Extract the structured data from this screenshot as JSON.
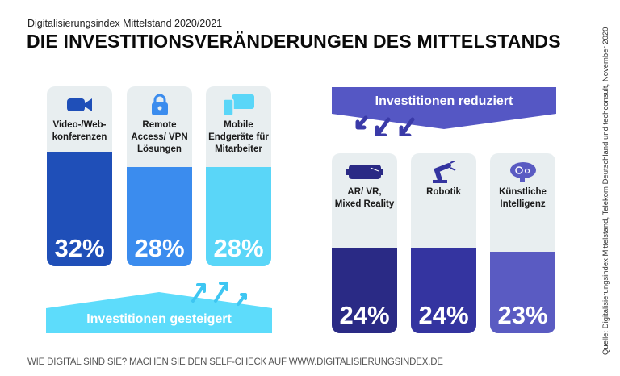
{
  "header": {
    "subtitle": "Digitalisierungsindex Mittelstand 2020/2021",
    "title": "DIE INVESTITIONSVERÄNDERUNGEN DES MITTELSTANDS"
  },
  "footer": {
    "cta": "WIE DIGITAL SIND SIE? MACHEN SIE DEN SELF-CHECK AUF WWW.DIGITALISIERUNGSINDEX.DE"
  },
  "source": "Quelle: Digitalisierungsindex Mittelstand, Telekom Deutschland und techconsult, November 2020",
  "chart_data": [
    {
      "type": "bar",
      "title": "Investitionen gesteigert",
      "categories": [
        "Video-/Web-konferenzen",
        "Remote Access/ VPN Lösungen",
        "Mobile Endgeräte für Mitarbeiter"
      ],
      "labels": [
        "32%",
        "28%",
        "28%"
      ],
      "values": [
        32,
        28,
        28
      ],
      "unit": "%",
      "colors": [
        "#1f4fb8",
        "#3b8cee",
        "#5ad6f8"
      ],
      "icons": [
        "video-camera-icon",
        "lock-icon",
        "devices-icon"
      ]
    },
    {
      "type": "bar",
      "title": "Investitionen reduziert",
      "categories": [
        "AR/ VR, Mixed Reality",
        "Robotik",
        "Künstliche Intelligenz"
      ],
      "labels": [
        "24%",
        "24%",
        "23%"
      ],
      "values": [
        24,
        24,
        23
      ],
      "unit": "%",
      "colors": [
        "#2a2a85",
        "#3434a0",
        "#5a5bc2"
      ],
      "icons": [
        "vr-headset-icon",
        "robot-arm-icon",
        "brain-gear-icon"
      ]
    }
  ],
  "colors": {
    "increase_banner": "#5ddcfb",
    "decrease_banner": "#5557c4",
    "card_bg": "#e8eef0"
  }
}
